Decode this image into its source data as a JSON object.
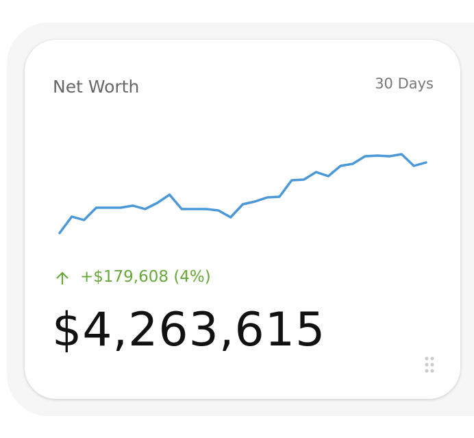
{
  "widget": {
    "title": "Net Worth",
    "period": "30 Days",
    "change": "+$179,608 (4%)",
    "value": "$4,263,615"
  },
  "chart_data": {
    "type": "line",
    "color": "#4a98d8",
    "values": [
      4084007,
      4125863,
      4117143,
      4148535,
      4148535,
      4148535,
      4153767,
      4145047,
      4160743,
      4181671,
      4145047,
      4145047,
      4145047,
      4141559,
      4124119,
      4157255,
      4164231,
      4174695,
      4176439,
      4218295,
      4220039,
      4239223,
      4228759,
      4254919,
      4260151,
      4279335,
      4281079,
      4279335,
      4284567,
      4254919,
      4263615
    ]
  }
}
